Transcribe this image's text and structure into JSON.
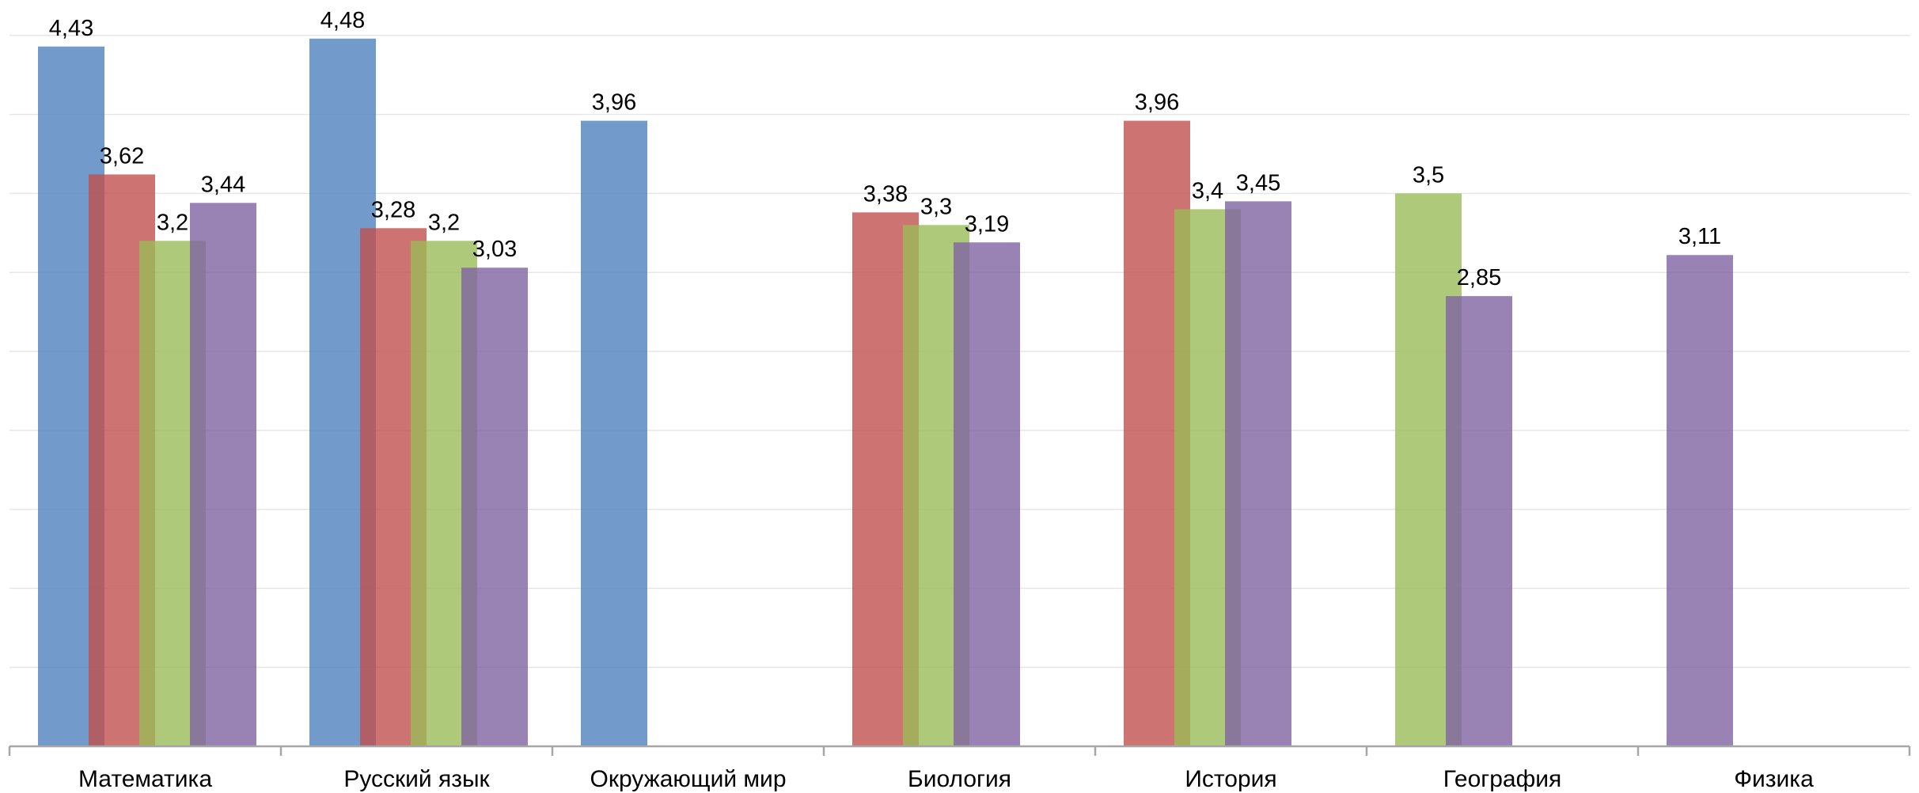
{
  "chart_data": {
    "type": "bar",
    "title": "",
    "xlabel": "",
    "ylabel": "",
    "ylim": [
      0,
      4.5
    ],
    "grid": true,
    "legend": "none",
    "categories": [
      "Математика",
      "Русский язык",
      "Окружающий мир",
      "Биология",
      "История",
      "География",
      "Физика"
    ],
    "series": [
      {
        "color": "#4f81bd",
        "values": [
          4.43,
          4.48,
          3.96,
          null,
          null,
          null,
          null
        ],
        "labels": [
          "4,43",
          "4,48",
          "3,96",
          null,
          null,
          null,
          null
        ]
      },
      {
        "color": "#c0504d",
        "values": [
          3.62,
          3.28,
          null,
          3.38,
          3.96,
          null,
          null
        ],
        "labels": [
          "3,62",
          "3,28",
          null,
          "3,38",
          "3,96",
          null,
          null
        ]
      },
      {
        "color": "#9bbb59",
        "values": [
          3.2,
          3.2,
          null,
          3.3,
          3.4,
          3.5,
          null
        ],
        "labels": [
          "3,2",
          "3,2",
          null,
          "3,3",
          "3,4",
          "3,5",
          null
        ]
      },
      {
        "color": "#8064a2",
        "values": [
          3.44,
          3.03,
          null,
          3.19,
          3.45,
          2.85,
          3.11
        ],
        "labels": [
          "3,44",
          "3,03",
          null,
          "3,19",
          "3,45",
          "2,85",
          "3,11"
        ]
      }
    ]
  }
}
